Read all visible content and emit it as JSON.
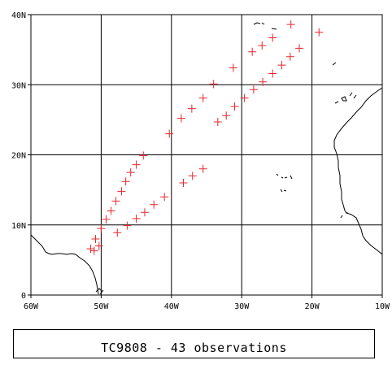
{
  "map": {
    "lon_range": [
      -60,
      -10
    ],
    "lat_range": [
      0,
      40
    ],
    "x_tick_labels": [
      "60W",
      "50W",
      "40W",
      "30W",
      "20W",
      "10W"
    ],
    "y_tick_labels": [
      "0",
      "10N",
      "20N",
      "30N",
      "40N"
    ],
    "grid": true,
    "marker_color": "#e8262b",
    "coast_color": "#000000",
    "observations": [
      {
        "lon": -51.5,
        "lat": 6.6
      },
      {
        "lon": -51.0,
        "lat": 6.3
      },
      {
        "lon": -50.8,
        "lat": 8.0
      },
      {
        "lon": -50.3,
        "lat": 7.0
      },
      {
        "lon": -50.0,
        "lat": 9.5
      },
      {
        "lon": -49.3,
        "lat": 10.8
      },
      {
        "lon": -48.6,
        "lat": 12.0
      },
      {
        "lon": -47.9,
        "lat": 13.4
      },
      {
        "lon": -47.1,
        "lat": 14.8
      },
      {
        "lon": -46.5,
        "lat": 16.2
      },
      {
        "lon": -45.8,
        "lat": 17.5
      },
      {
        "lon": -45.0,
        "lat": 18.6
      },
      {
        "lon": -44.0,
        "lat": 19.9
      },
      {
        "lon": -47.7,
        "lat": 8.9
      },
      {
        "lon": -46.3,
        "lat": 9.9
      },
      {
        "lon": -45.0,
        "lat": 10.9
      },
      {
        "lon": -43.8,
        "lat": 11.8
      },
      {
        "lon": -42.5,
        "lat": 12.9
      },
      {
        "lon": -41.0,
        "lat": 14.0
      },
      {
        "lon": -40.3,
        "lat": 23.0
      },
      {
        "lon": -38.6,
        "lat": 25.2
      },
      {
        "lon": -37.1,
        "lat": 26.6
      },
      {
        "lon": -35.5,
        "lat": 28.1
      },
      {
        "lon": -34.0,
        "lat": 30.1
      },
      {
        "lon": -31.2,
        "lat": 32.4
      },
      {
        "lon": -38.3,
        "lat": 16.0
      },
      {
        "lon": -37.0,
        "lat": 17.0
      },
      {
        "lon": -35.5,
        "lat": 18.0
      },
      {
        "lon": -33.4,
        "lat": 24.7
      },
      {
        "lon": -32.2,
        "lat": 25.6
      },
      {
        "lon": -31.0,
        "lat": 26.9
      },
      {
        "lon": -29.6,
        "lat": 28.1
      },
      {
        "lon": -28.3,
        "lat": 29.3
      },
      {
        "lon": -27.0,
        "lat": 30.4
      },
      {
        "lon": -25.6,
        "lat": 31.6
      },
      {
        "lon": -24.3,
        "lat": 32.8
      },
      {
        "lon": -23.1,
        "lat": 34.0
      },
      {
        "lon": -21.8,
        "lat": 35.2
      },
      {
        "lon": -28.5,
        "lat": 34.7
      },
      {
        "lon": -27.1,
        "lat": 35.6
      },
      {
        "lon": -25.6,
        "lat": 36.7
      },
      {
        "lon": -23.0,
        "lat": 38.6
      },
      {
        "lon": -19.0,
        "lat": 37.5
      }
    ]
  },
  "caption": "TC9808 - 43 observations"
}
